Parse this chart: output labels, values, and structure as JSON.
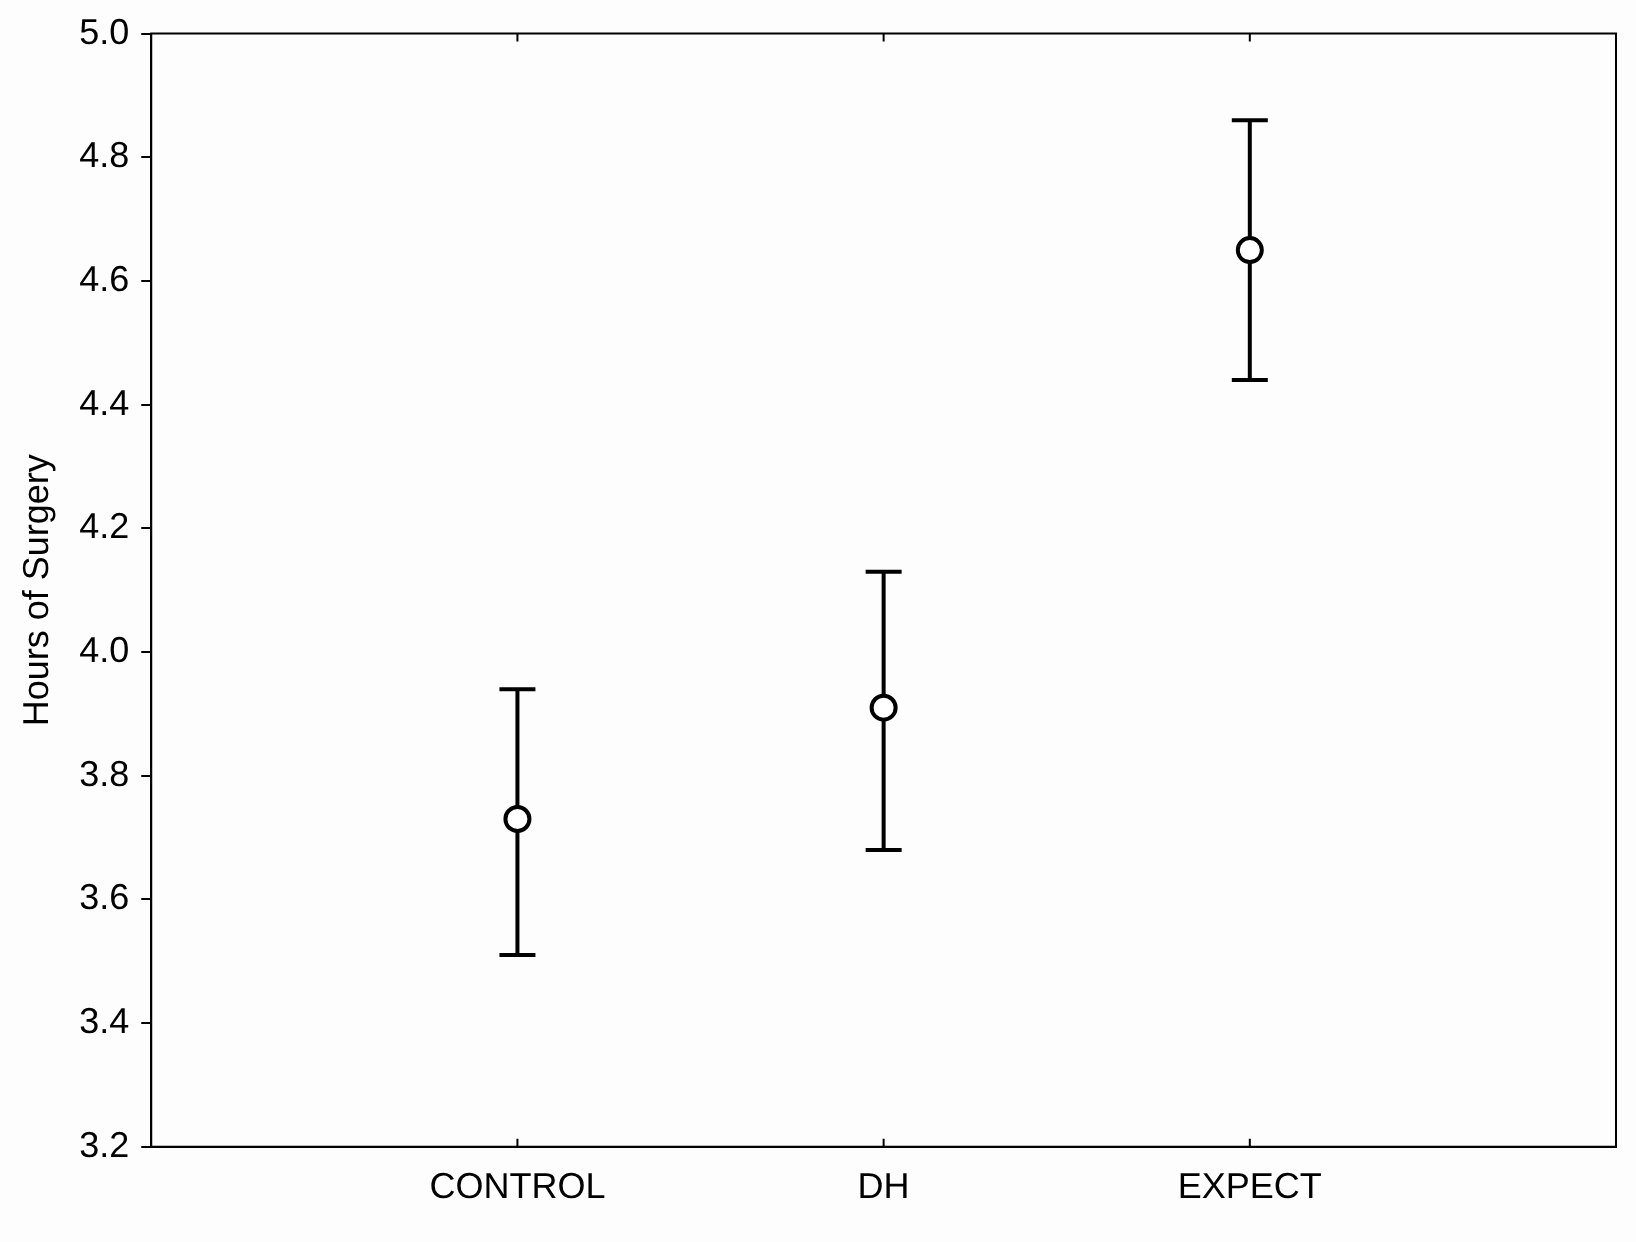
{
  "chart_data": {
    "type": "scatter",
    "ylabel": "Hours of Surgery",
    "categories": [
      null,
      "CONTROL",
      "DH",
      "EXPECT",
      null
    ],
    "values": [
      null,
      3.73,
      3.91,
      4.65,
      null
    ],
    "errors": [
      null,
      [
        3.51,
        3.94
      ],
      [
        3.68,
        4.13
      ],
      [
        4.44,
        4.86
      ],
      null
    ],
    "color": "#000000",
    "marker": "circle",
    "ylim": [
      3.2,
      5.0
    ],
    "yticks": [
      {
        "value": 3.2,
        "label": "3.2"
      },
      {
        "value": 3.4,
        "label": "3.4"
      },
      {
        "value": 3.6,
        "label": "3.6"
      },
      {
        "value": 3.8,
        "label": "3.8"
      },
      {
        "value": 4.0,
        "label": "4.0"
      },
      {
        "value": 4.2,
        "label": "4.2"
      },
      {
        "value": 4.4,
        "label": "4.4"
      },
      {
        "value": 4.6,
        "label": "4.6"
      },
      {
        "value": 4.8,
        "label": "4.8"
      },
      {
        "value": 5.0,
        "label": "5.0"
      }
    ],
    "grid": false,
    "legend": false
  }
}
